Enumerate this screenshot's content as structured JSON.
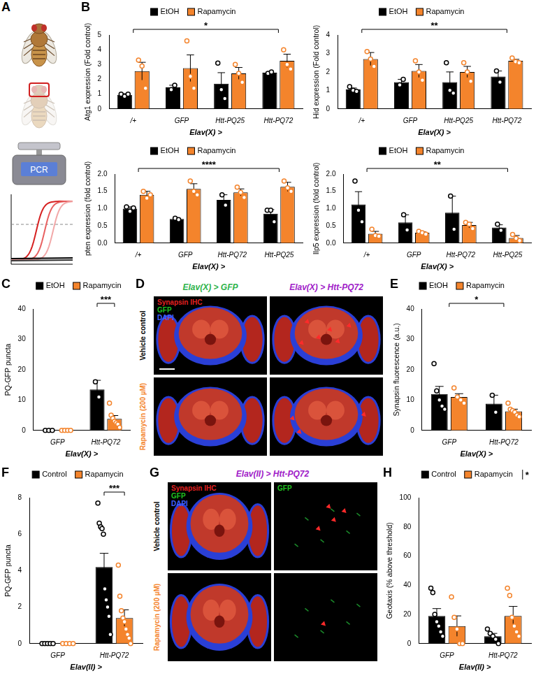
{
  "figure": {
    "panel_labels": [
      "A",
      "B",
      "C",
      "D",
      "E",
      "F",
      "G",
      "H"
    ],
    "A": {
      "device_label": "PCR"
    },
    "D": {
      "columns": [
        {
          "text": "Elav(X) > GFP",
          "color": "#2db34a"
        },
        {
          "text": "Elav(X) > Htt-PQ72",
          "color": "#a020c8"
        }
      ],
      "rows": [
        {
          "text": "Vehicle control",
          "color": "#000000"
        },
        {
          "text": "Rapamycin (200 µM)",
          "color": "#f4842c"
        }
      ],
      "stains": [
        {
          "text": "Synapsin IHC",
          "color": "#e02020"
        },
        {
          "text": "GFP",
          "color": "#20c020"
        },
        {
          "text": "DAPI",
          "color": "#4060ff"
        }
      ]
    },
    "G": {
      "title": {
        "text": "Elav(II) > Htt-PQ72",
        "color": "#a020c8"
      },
      "rows": [
        {
          "text": "Vehicle control",
          "color": "#000000"
        },
        {
          "text": "Rapamycin (200 µM)",
          "color": "#f4842c"
        }
      ],
      "stains": [
        {
          "text": "Synapsin IHC",
          "color": "#e02020"
        },
        {
          "text": "GFP",
          "color": "#20c020"
        },
        {
          "text": "DAPI",
          "color": "#4060ff"
        }
      ],
      "channel_label": {
        "text": "GFP",
        "color": "#20c020"
      }
    }
  },
  "chart_data": [
    {
      "type": "bar",
      "categories": [
        "/+",
        "GFP",
        "Htt-PQ25",
        "Htt-PQ72"
      ],
      "x_label": "Elav(X) >",
      "y_label": "Atg1 expression (Fold control)",
      "ylim": [
        0,
        5
      ],
      "yticks": [
        0,
        1,
        2,
        3,
        4,
        5
      ],
      "grid": false,
      "legend": "top",
      "series": [
        {
          "name": "EtOH",
          "color": "#000000",
          "values": [
            0.95,
            1.45,
            1.7,
            2.45
          ],
          "errors": [
            0.08,
            0.15,
            0.75,
            0.05
          ],
          "points": [
            [
              1.0,
              0.85,
              1.0
            ],
            [
              1.3,
              1.6
            ],
            [
              3.1,
              1.3,
              0.7
            ],
            [
              2.4,
              2.5
            ]
          ]
        },
        {
          "name": "Rapamycin",
          "color": "#f4842c",
          "values": [
            2.55,
            2.75,
            2.4,
            3.25
          ],
          "errors": [
            0.6,
            0.9,
            0.4,
            0.45
          ],
          "points": [
            [
              3.3,
              2.9,
              1.4
            ],
            [
              4.6,
              2.2,
              1.4
            ],
            [
              3.0,
              2.4,
              1.8
            ],
            [
              4.0,
              3.0,
              2.7
            ]
          ]
        }
      ],
      "annotations": [
        {
          "text": "*",
          "from": "/+",
          "to": "Htt-PQ72"
        }
      ]
    },
    {
      "type": "bar",
      "categories": [
        "/+",
        "GFP",
        "Htt-PQ25",
        "Htt-PQ72"
      ],
      "x_label": "Elav(X) >",
      "y_label": "Hid expression (Fold control)",
      "ylim": [
        0,
        4
      ],
      "yticks": [
        0,
        1,
        2,
        3,
        4
      ],
      "grid": false,
      "legend": "top",
      "series": [
        {
          "name": "EtOH",
          "color": "#000000",
          "values": [
            1.05,
            1.45,
            1.45,
            1.75
          ],
          "errors": [
            0.08,
            0.15,
            0.55,
            0.3
          ],
          "points": [
            [
              1.2,
              1.0,
              0.95
            ],
            [
              1.3,
              1.6
            ],
            [
              2.5,
              1.0,
              0.85
            ],
            [
              2.05,
              1.45
            ]
          ]
        },
        {
          "name": "Rapamycin",
          "color": "#f4842c",
          "values": [
            2.7,
            2.05,
            2.0,
            2.6
          ],
          "errors": [
            0.35,
            0.35,
            0.3,
            0.08
          ],
          "points": [
            [
              3.1,
              2.7,
              2.3
            ],
            [
              2.6,
              2.0,
              1.55
            ],
            [
              2.5,
              2.0,
              1.5
            ],
            [
              2.75,
              2.55,
              2.5
            ]
          ]
        }
      ],
      "annotations": [
        {
          "text": "**",
          "from": "/+",
          "to": "Htt-PQ72"
        }
      ]
    },
    {
      "type": "bar",
      "categories": [
        "/+",
        "GFP",
        "Htt-PQ72",
        "Htt-PQ25"
      ],
      "x_label": "Elav(X) >",
      "y_label": "pten expression (fold control)",
      "ylim": [
        0,
        2
      ],
      "yticks": [
        {
          "value": 0,
          "label": "0.0"
        },
        {
          "value": 0.5,
          "label": "0.5"
        },
        {
          "value": 1,
          "label": "1.0"
        },
        {
          "value": 1.5,
          "label": "1.5"
        },
        {
          "value": 2,
          "label": "2.0"
        }
      ],
      "grid": false,
      "legend": "top",
      "series": [
        {
          "name": "EtOH",
          "color": "#000000",
          "values": [
            1.0,
            0.7,
            1.25,
            0.85
          ],
          "errors": [
            0.05,
            0.02,
            0.15,
            0.12
          ],
          "points": [
            [
              1.05,
              0.92,
              1.02
            ],
            [
              0.72,
              0.68
            ],
            [
              1.4,
              1.1
            ],
            [
              0.95,
              0.95,
              0.62
            ]
          ]
        },
        {
          "name": "Rapamycin",
          "color": "#f4842c",
          "values": [
            1.4,
            1.57,
            1.47,
            1.63
          ],
          "errors": [
            0.1,
            0.15,
            0.1,
            0.13
          ],
          "points": [
            [
              1.5,
              1.3,
              1.4
            ],
            [
              1.8,
              1.5,
              1.4
            ],
            [
              1.62,
              1.47,
              1.32
            ],
            [
              1.8,
              1.6,
              1.5
            ]
          ]
        }
      ],
      "annotations": [
        {
          "text": "****",
          "from": "/+",
          "to": "Htt-PQ25"
        }
      ]
    },
    {
      "type": "bar",
      "categories": [
        "/+",
        "GFP",
        "Htt-PQ72",
        "Htt-PQ25"
      ],
      "x_label": "Elav(X) >",
      "y_label": "Ilp5 expression (fold control)",
      "ylim": [
        0,
        2
      ],
      "yticks": [
        {
          "value": 0,
          "label": "0.0"
        },
        {
          "value": 0.5,
          "label": "0.5"
        },
        {
          "value": 1,
          "label": "1.0"
        },
        {
          "value": 1.5,
          "label": "1.5"
        },
        {
          "value": 2,
          "label": "2.0"
        }
      ],
      "grid": false,
      "legend": "top",
      "series": [
        {
          "name": "EtOH",
          "color": "#000000",
          "values": [
            1.12,
            0.6,
            0.88,
            0.45
          ],
          "errors": [
            0.37,
            0.22,
            0.48,
            0.08
          ],
          "points": [
            [
              1.8,
              0.95,
              0.62
            ],
            [
              0.82,
              0.38
            ],
            [
              1.36,
              0.4
            ],
            [
              0.55,
              0.37
            ]
          ]
        },
        {
          "name": "Rapamycin",
          "color": "#f4842c",
          "values": [
            0.27,
            0.3,
            0.52,
            0.15
          ],
          "errors": [
            0.07,
            0.03,
            0.08,
            0.07
          ],
          "points": [
            [
              0.4,
              0.22,
              0.2
            ],
            [
              0.34,
              0.3,
              0.26
            ],
            [
              0.6,
              0.55,
              0.42
            ],
            [
              0.25,
              0.14,
              0.07
            ]
          ]
        }
      ],
      "annotations": [
        {
          "text": "**",
          "from": "/+",
          "to": "Htt-PQ25"
        }
      ]
    },
    {
      "type": "bar",
      "categories": [
        "GFP",
        "Htt-PQ72"
      ],
      "x_label": "Elav(X) >",
      "y_label": "PQ-GFP puncta",
      "ylim": [
        0,
        40
      ],
      "yticks": [
        0,
        10,
        20,
        30,
        40
      ],
      "grid": false,
      "legend": "upper left",
      "series": [
        {
          "name": "EtOH",
          "color": "#000000",
          "values": [
            0,
            13.5
          ],
          "errors": [
            0,
            3
          ],
          "points": [
            [
              0,
              0,
              0
            ],
            [
              16,
              11
            ]
          ]
        },
        {
          "name": "Rapamycin",
          "color": "#f4842c",
          "values": [
            0,
            3.8
          ],
          "errors": [
            0,
            1.1
          ],
          "points": [
            [
              0,
              0,
              0,
              0
            ],
            [
              9,
              5,
              4,
              3,
              2.5,
              2,
              1
            ]
          ]
        }
      ],
      "annotations": [
        {
          "text": "***",
          "from": "Htt-PQ72",
          "to": "Htt-PQ72"
        }
      ]
    },
    {
      "type": "bar",
      "categories": [
        "GFP",
        "Htt-PQ72"
      ],
      "x_label": "Elav(X) >",
      "y_label": "Synapsin fluorescence (a.u.)",
      "ylim": [
        0,
        40
      ],
      "yticks": [
        0,
        10,
        20,
        30,
        40
      ],
      "grid": false,
      "legend": "top",
      "series": [
        {
          "name": "EtOH",
          "color": "#000000",
          "values": [
            12,
            8.8
          ],
          "errors": [
            2.5,
            2.8
          ],
          "points": [
            [
              22,
              13,
              10,
              8,
              7
            ],
            [
              11.6,
              6
            ]
          ]
        },
        {
          "name": "Rapamycin",
          "color": "#f4842c",
          "values": [
            11,
            6.3
          ],
          "errors": [
            1.1,
            0.7
          ],
          "points": [
            [
              14,
              11,
              10,
              9
            ],
            [
              9,
              7,
              6.5,
              6,
              5,
              4.5
            ]
          ]
        }
      ],
      "annotations": [
        {
          "text": "*",
          "from": "GFP",
          "to": "Htt-PQ72"
        }
      ]
    },
    {
      "type": "bar",
      "categories": [
        "GFP",
        "Htt-PQ72"
      ],
      "x_label": "Elav(II) >",
      "y_label": "PQ-GFP puncta",
      "ylim": [
        0,
        8
      ],
      "yticks": [
        0,
        2,
        4,
        6,
        8
      ],
      "grid": false,
      "legend": "upper left",
      "series": [
        {
          "name": "Control",
          "color": "#000000",
          "values": [
            0,
            4.2
          ],
          "errors": [
            0,
            0.75
          ],
          "points": [
            [
              0,
              0,
              0,
              0,
              0
            ],
            [
              7.7,
              6.6,
              6.4,
              6.3,
              6.0,
              3.0,
              2.4,
              2.0,
              1.5,
              0.5
            ]
          ]
        },
        {
          "name": "Rapamycin",
          "color": "#f4842c",
          "values": [
            0,
            1.4
          ],
          "errors": [
            0,
            0.45
          ],
          "points": [
            [
              0,
              0,
              0,
              0
            ],
            [
              4.3,
              2.6,
              1.8,
              1.4,
              1.2,
              0.8,
              0.5,
              0.3,
              0
            ]
          ]
        }
      ],
      "annotations": [
        {
          "text": "***",
          "from": "Htt-PQ72",
          "to": "Htt-PQ72"
        }
      ]
    },
    {
      "type": "bar",
      "categories": [
        "GFP",
        "Htt-PQ72"
      ],
      "x_label": "Elav(II) >",
      "y_label": "Geotaxis (% above threshold)",
      "ylim": [
        0,
        100
      ],
      "yticks": [
        0,
        20,
        40,
        60,
        80,
        100
      ],
      "grid": false,
      "legend": "upper left",
      "series": [
        {
          "name": "Control",
          "color": "#000000",
          "values": [
            19,
            5
          ],
          "errors": [
            5,
            2
          ],
          "points": [
            [
              38,
              35,
              20,
              15,
              12,
              8,
              5
            ],
            [
              10,
              7,
              5,
              3,
              0
            ]
          ]
        },
        {
          "name": "Rapamycin",
          "color": "#f4842c",
          "values": [
            12,
            19
          ],
          "errors": [
            7,
            6.5
          ],
          "points": [
            [
              32,
              18,
              10,
              0,
              0
            ],
            [
              38,
              33,
              18,
              12,
              8,
              5
            ]
          ]
        }
      ],
      "annotations": [
        {
          "text": "*"
        }
      ]
    }
  ]
}
